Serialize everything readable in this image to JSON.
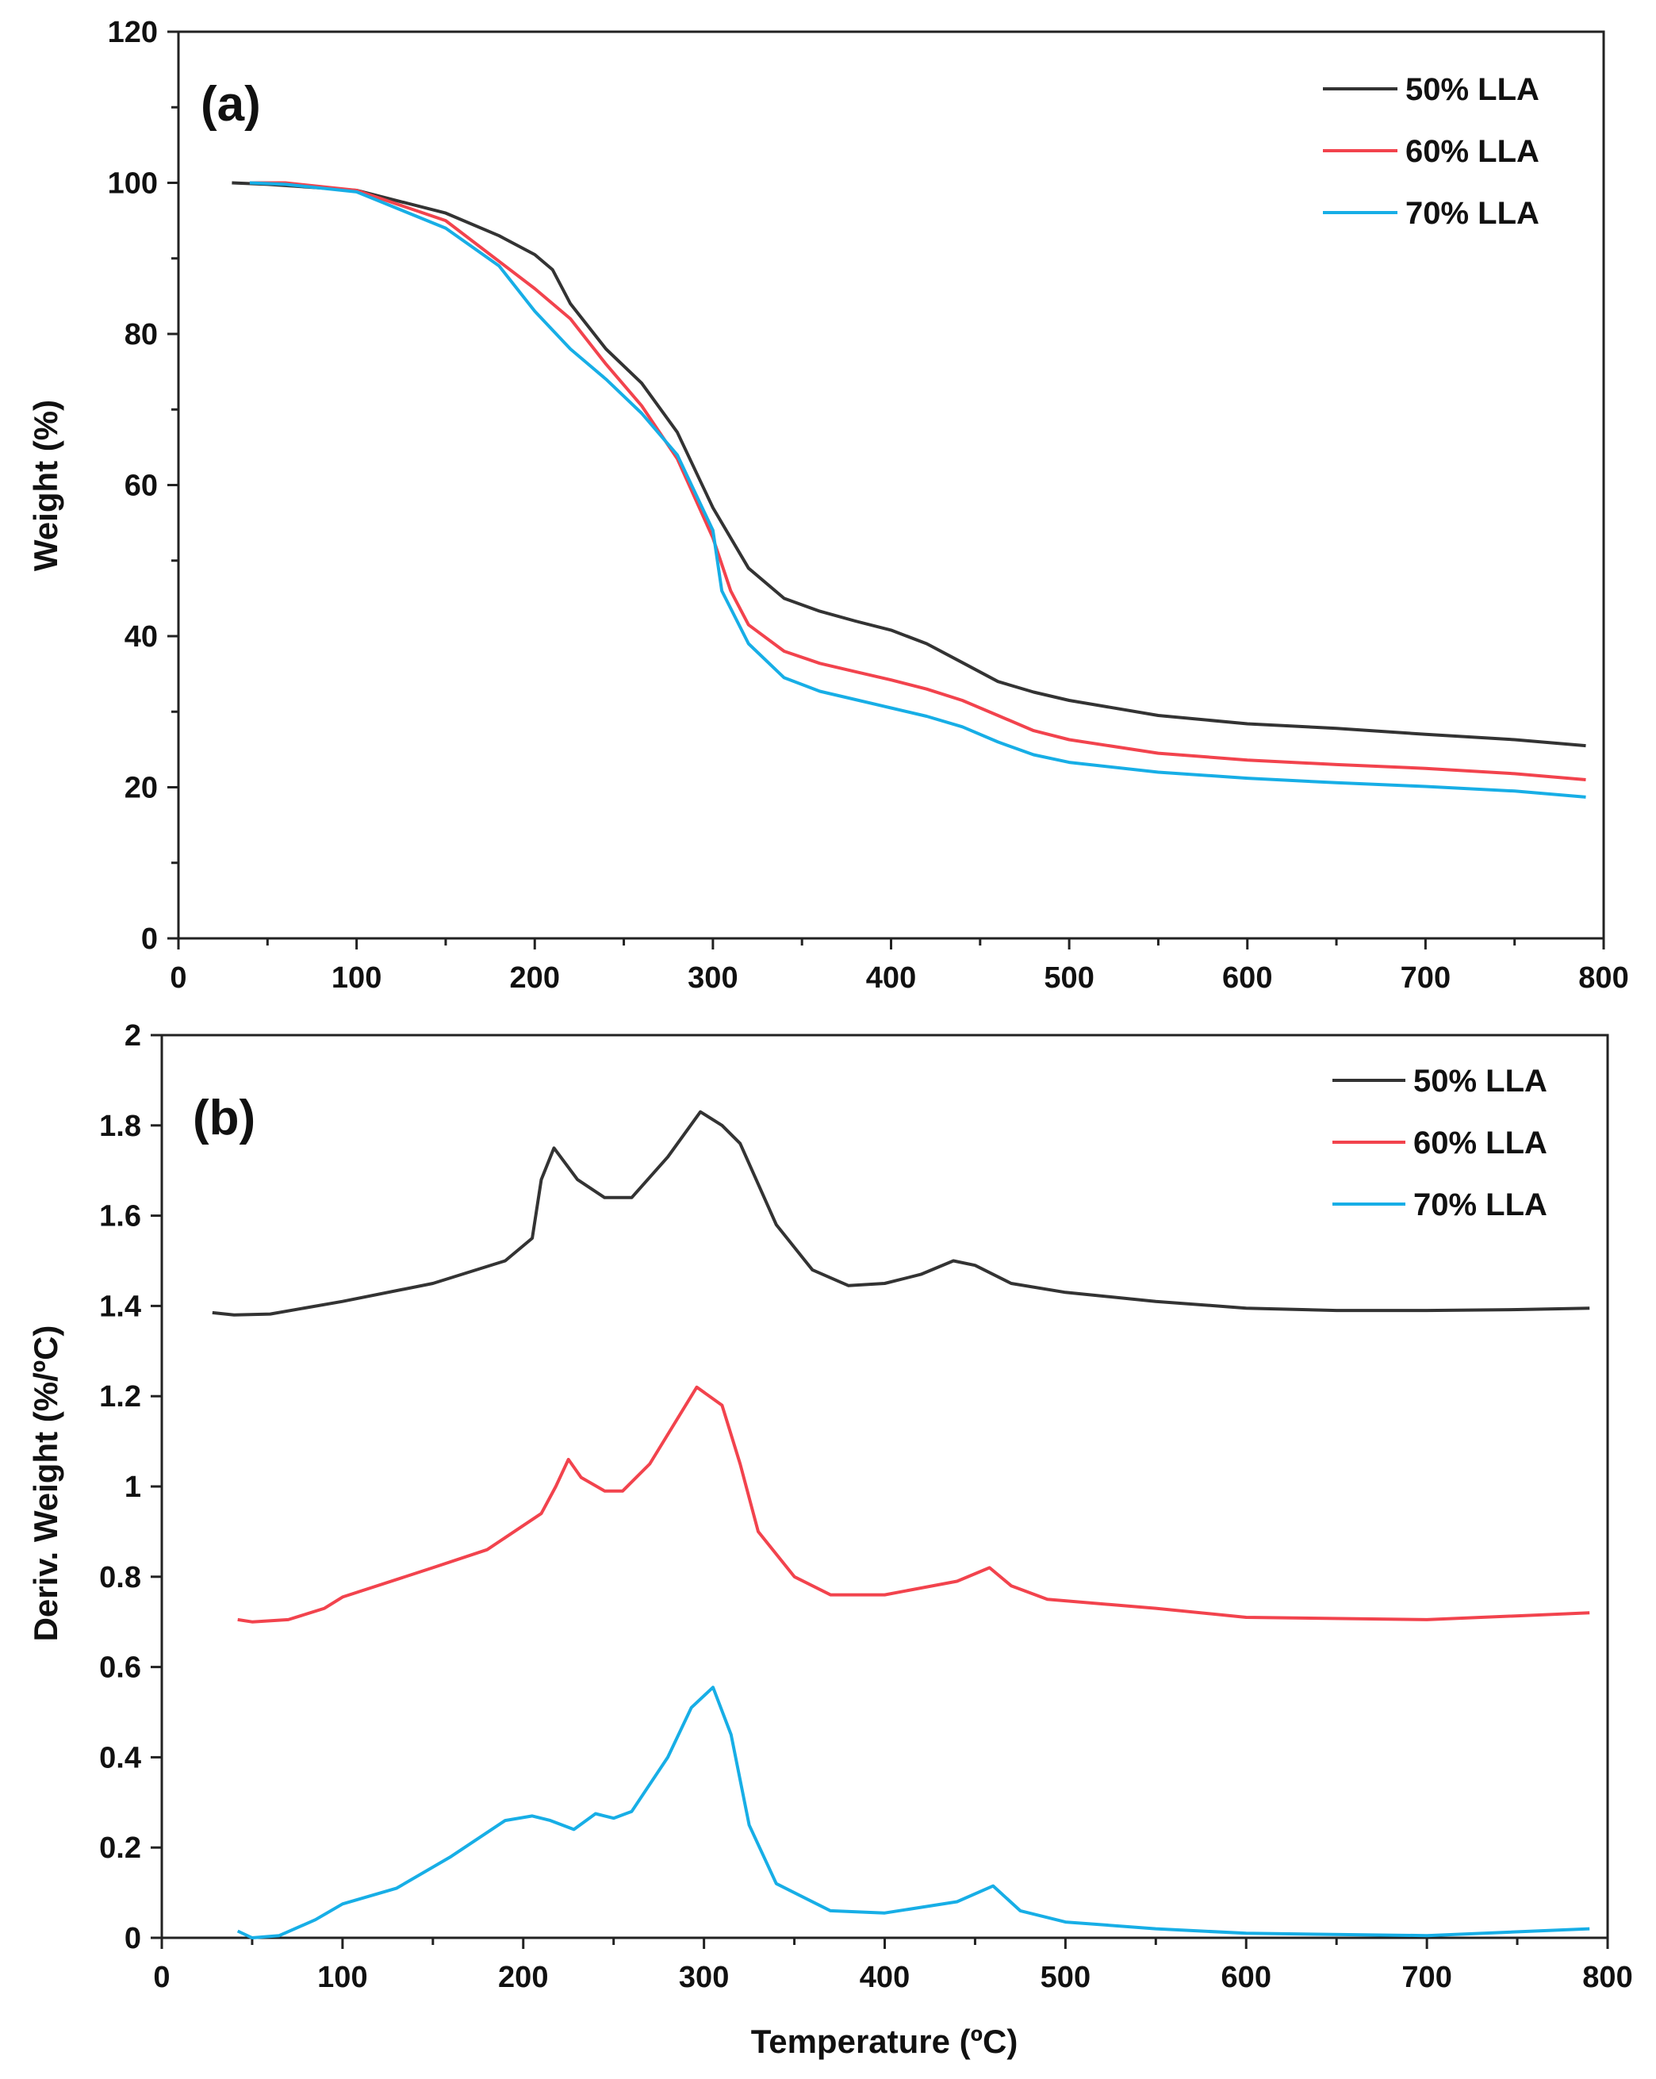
{
  "colors": {
    "50": "#333333",
    "60": "#f2434d",
    "70": "#17aee6"
  },
  "chart_data": [
    {
      "type": "line",
      "panel_label": "(a)",
      "xlabel": "",
      "ylabel": "Weight (%)",
      "xlim": [
        0,
        800
      ],
      "ylim": [
        0,
        120
      ],
      "xticks": [
        0,
        100,
        200,
        300,
        400,
        500,
        600,
        700,
        800
      ],
      "xtick_labels": [
        "0",
        "100",
        "200",
        "300",
        "400",
        "500",
        "600",
        "700",
        "800"
      ],
      "yticks": [
        0,
        20,
        40,
        60,
        80,
        100,
        120
      ],
      "ytick_labels": [
        "0",
        "20",
        "40",
        "60",
        "80",
        "100",
        "120"
      ],
      "legend": "top-right",
      "grid": false,
      "series": [
        {
          "name": "50% LLA",
          "color_key": "50",
          "points": [
            [
              30,
              100
            ],
            [
              50,
              99.8
            ],
            [
              100,
              99
            ],
            [
              150,
              96
            ],
            [
              180,
              93
            ],
            [
              200,
              90.5
            ],
            [
              210,
              88.5
            ],
            [
              220,
              84
            ],
            [
              240,
              78
            ],
            [
              260,
              73.5
            ],
            [
              280,
              67
            ],
            [
              300,
              57
            ],
            [
              320,
              49
            ],
            [
              340,
              45
            ],
            [
              360,
              43.3
            ],
            [
              380,
              42
            ],
            [
              400,
              40.8
            ],
            [
              420,
              39
            ],
            [
              440,
              36.5
            ],
            [
              460,
              34
            ],
            [
              480,
              32.6
            ],
            [
              500,
              31.5
            ],
            [
              550,
              29.5
            ],
            [
              600,
              28.4
            ],
            [
              650,
              27.8
            ],
            [
              700,
              27
            ],
            [
              750,
              26.3
            ],
            [
              790,
              25.5
            ]
          ]
        },
        {
          "name": "60% LLA",
          "color_key": "60",
          "points": [
            [
              40,
              100
            ],
            [
              60,
              100
            ],
            [
              100,
              99
            ],
            [
              150,
              95
            ],
            [
              200,
              86
            ],
            [
              220,
              82
            ],
            [
              240,
              76
            ],
            [
              260,
              70.5
            ],
            [
              280,
              63.5
            ],
            [
              300,
              53
            ],
            [
              310,
              46
            ],
            [
              320,
              41.5
            ],
            [
              340,
              38
            ],
            [
              360,
              36.4
            ],
            [
              380,
              35.3
            ],
            [
              400,
              34.2
            ],
            [
              420,
              33
            ],
            [
              440,
              31.5
            ],
            [
              460,
              29.5
            ],
            [
              480,
              27.5
            ],
            [
              500,
              26.3
            ],
            [
              550,
              24.5
            ],
            [
              600,
              23.6
            ],
            [
              650,
              23
            ],
            [
              700,
              22.5
            ],
            [
              750,
              21.8
            ],
            [
              790,
              21
            ]
          ]
        },
        {
          "name": "70% LLA",
          "color_key": "70",
          "points": [
            [
              40,
              100
            ],
            [
              60,
              99.8
            ],
            [
              100,
              98.8
            ],
            [
              150,
              94
            ],
            [
              180,
              89
            ],
            [
              200,
              83
            ],
            [
              220,
              78
            ],
            [
              240,
              74
            ],
            [
              260,
              69.5
            ],
            [
              280,
              64
            ],
            [
              300,
              54
            ],
            [
              305,
              46
            ],
            [
              320,
              39
            ],
            [
              340,
              34.5
            ],
            [
              360,
              32.7
            ],
            [
              380,
              31.6
            ],
            [
              400,
              30.5
            ],
            [
              420,
              29.4
            ],
            [
              440,
              28
            ],
            [
              460,
              26
            ],
            [
              480,
              24.3
            ],
            [
              500,
              23.3
            ],
            [
              550,
              22
            ],
            [
              600,
              21.2
            ],
            [
              650,
              20.6
            ],
            [
              700,
              20.1
            ],
            [
              750,
              19.5
            ],
            [
              790,
              18.7
            ]
          ]
        }
      ]
    },
    {
      "type": "line",
      "panel_label": "(b)",
      "xlabel": "Temperature (ºC)",
      "ylabel": "Deriv. Weight (%/ºC)",
      "xlim": [
        0,
        800
      ],
      "ylim": [
        0,
        2
      ],
      "xticks": [
        0,
        100,
        200,
        300,
        400,
        500,
        600,
        700,
        800
      ],
      "xtick_labels": [
        "0",
        "100",
        "200",
        "300",
        "400",
        "500",
        "600",
        "700",
        "800"
      ],
      "yticks": [
        0,
        0.2,
        0.4,
        0.6,
        0.8,
        1,
        1.2,
        1.4,
        1.6,
        1.8,
        2
      ],
      "ytick_labels": [
        "0",
        "0.2",
        "0.4",
        "0.6",
        "0.8",
        "1",
        "1.2",
        "1.4",
        "1.6",
        "1.8",
        "2"
      ],
      "legend": "top-right",
      "grid": false,
      "series": [
        {
          "name": "50% LLA",
          "color_key": "50",
          "points": [
            [
              28,
              1.385
            ],
            [
              40,
              1.38
            ],
            [
              60,
              1.382
            ],
            [
              100,
              1.41
            ],
            [
              150,
              1.45
            ],
            [
              190,
              1.5
            ],
            [
              205,
              1.55
            ],
            [
              210,
              1.68
            ],
            [
              217,
              1.75
            ],
            [
              230,
              1.68
            ],
            [
              245,
              1.64
            ],
            [
              260,
              1.64
            ],
            [
              280,
              1.73
            ],
            [
              298,
              1.83
            ],
            [
              310,
              1.8
            ],
            [
              320,
              1.76
            ],
            [
              340,
              1.58
            ],
            [
              360,
              1.48
            ],
            [
              380,
              1.445
            ],
            [
              400,
              1.45
            ],
            [
              420,
              1.47
            ],
            [
              438,
              1.5
            ],
            [
              450,
              1.49
            ],
            [
              470,
              1.45
            ],
            [
              500,
              1.43
            ],
            [
              550,
              1.41
            ],
            [
              600,
              1.395
            ],
            [
              650,
              1.39
            ],
            [
              700,
              1.39
            ],
            [
              750,
              1.392
            ],
            [
              790,
              1.395
            ]
          ]
        },
        {
          "name": "60% LLA",
          "color_key": "60",
          "points": [
            [
              42,
              0.705
            ],
            [
              50,
              0.7
            ],
            [
              70,
              0.705
            ],
            [
              90,
              0.73
            ],
            [
              100,
              0.755
            ],
            [
              150,
              0.82
            ],
            [
              180,
              0.86
            ],
            [
              210,
              0.94
            ],
            [
              218,
              1.0
            ],
            [
              225,
              1.06
            ],
            [
              232,
              1.02
            ],
            [
              245,
              0.99
            ],
            [
              255,
              0.99
            ],
            [
              270,
              1.05
            ],
            [
              296,
              1.22
            ],
            [
              310,
              1.18
            ],
            [
              320,
              1.05
            ],
            [
              330,
              0.9
            ],
            [
              350,
              0.8
            ],
            [
              370,
              0.76
            ],
            [
              400,
              0.76
            ],
            [
              440,
              0.79
            ],
            [
              458,
              0.82
            ],
            [
              470,
              0.78
            ],
            [
              490,
              0.75
            ],
            [
              550,
              0.73
            ],
            [
              600,
              0.71
            ],
            [
              700,
              0.705
            ],
            [
              790,
              0.72
            ]
          ]
        },
        {
          "name": "70% LLA",
          "color_key": "70",
          "points": [
            [
              42,
              0.015
            ],
            [
              50,
              0.0
            ],
            [
              65,
              0.005
            ],
            [
              85,
              0.04
            ],
            [
              100,
              0.075
            ],
            [
              130,
              0.11
            ],
            [
              160,
              0.18
            ],
            [
              190,
              0.26
            ],
            [
              205,
              0.27
            ],
            [
              215,
              0.26
            ],
            [
              228,
              0.24
            ],
            [
              240,
              0.275
            ],
            [
              250,
              0.265
            ],
            [
              260,
              0.28
            ],
            [
              280,
              0.4
            ],
            [
              293,
              0.51
            ],
            [
              305,
              0.555
            ],
            [
              315,
              0.45
            ],
            [
              325,
              0.25
            ],
            [
              340,
              0.12
            ],
            [
              370,
              0.06
            ],
            [
              400,
              0.055
            ],
            [
              440,
              0.08
            ],
            [
              460,
              0.115
            ],
            [
              475,
              0.06
            ],
            [
              500,
              0.035
            ],
            [
              550,
              0.02
            ],
            [
              600,
              0.01
            ],
            [
              700,
              0.005
            ],
            [
              790,
              0.02
            ]
          ]
        }
      ]
    }
  ]
}
